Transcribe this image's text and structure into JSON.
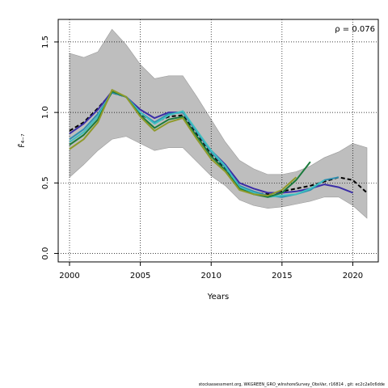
{
  "chart_data": {
    "type": "line",
    "xlabel": "Years",
    "ylabel": "F̄₄₋₇",
    "annotation": "ρ = 0.076",
    "xlim": [
      1999.2,
      2021.8
    ],
    "ylim": [
      -0.06,
      1.66
    ],
    "xticks": [
      2000,
      2005,
      2010,
      2015,
      2020
    ],
    "yticks": [
      0.0,
      0.5,
      1.0,
      1.5
    ],
    "xtick_labels": [
      "2000",
      "2005",
      "2010",
      "2015",
      "2020"
    ],
    "ytick_labels": [
      "0.0",
      "0.5",
      "1.0",
      "1.5"
    ],
    "grid": true,
    "band": {
      "color": "#bebebe",
      "x": [
        2000,
        2001,
        2002,
        2003,
        2004,
        2005,
        2006,
        2007,
        2008,
        2009,
        2010,
        2011,
        2012,
        2013,
        2014,
        2015,
        2016,
        2017,
        2018,
        2019,
        2020,
        2021
      ],
      "upper": [
        1.42,
        1.39,
        1.43,
        1.59,
        1.48,
        1.34,
        1.24,
        1.26,
        1.26,
        1.11,
        0.95,
        0.79,
        0.66,
        0.6,
        0.56,
        0.56,
        0.58,
        0.62,
        0.68,
        0.72,
        0.78,
        0.75
      ],
      "lower": [
        0.54,
        0.63,
        0.73,
        0.81,
        0.83,
        0.78,
        0.73,
        0.75,
        0.75,
        0.65,
        0.55,
        0.48,
        0.38,
        0.34,
        0.32,
        0.33,
        0.35,
        0.37,
        0.4,
        0.4,
        0.34,
        0.25
      ]
    },
    "series": [
      {
        "color": "#000000",
        "dashed": true,
        "x": [
          2000,
          2001,
          2002,
          2003,
          2004,
          2005,
          2006,
          2007,
          2008,
          2009,
          2010,
          2011,
          2012,
          2013,
          2014,
          2015,
          2016,
          2017,
          2018,
          2019,
          2020,
          2021
        ],
        "values": [
          0.87,
          0.93,
          1.03,
          1.14,
          1.11,
          0.99,
          0.93,
          0.97,
          0.98,
          0.84,
          0.7,
          0.6,
          0.48,
          0.43,
          0.42,
          0.44,
          0.46,
          0.48,
          0.51,
          0.54,
          0.52,
          0.43
        ]
      },
      {
        "color": "#3a2da6",
        "x": [
          2000,
          2001,
          2002,
          2003,
          2004,
          2005,
          2006,
          2007,
          2008,
          2009,
          2010,
          2011,
          2012,
          2013,
          2014,
          2015,
          2016,
          2017,
          2018,
          2019,
          2020
        ],
        "values": [
          0.85,
          0.92,
          1.02,
          1.15,
          1.11,
          1.02,
          0.96,
          1.0,
          1.0,
          0.86,
          0.73,
          0.63,
          0.5,
          0.46,
          0.43,
          0.43,
          0.44,
          0.46,
          0.49,
          0.47,
          0.43
        ]
      },
      {
        "color": "#2f8fb0",
        "x": [
          2000,
          2001,
          2002,
          2003,
          2004,
          2005,
          2006,
          2007,
          2008,
          2009,
          2010,
          2011,
          2012,
          2013,
          2014,
          2015,
          2016,
          2017,
          2018,
          2019
        ],
        "values": [
          0.81,
          0.88,
          0.99,
          1.14,
          1.11,
          1.0,
          0.93,
          0.99,
          1.0,
          0.86,
          0.72,
          0.61,
          0.48,
          0.44,
          0.41,
          0.4,
          0.42,
          0.45,
          0.52,
          0.54
        ]
      },
      {
        "color": "#3fc0c0",
        "x": [
          2000,
          2001,
          2002,
          2003,
          2004,
          2005,
          2006,
          2007,
          2008,
          2009,
          2010,
          2011,
          2012,
          2013,
          2014,
          2015,
          2016,
          2017,
          2018
        ],
        "values": [
          0.79,
          0.86,
          0.97,
          1.15,
          1.11,
          1.0,
          0.92,
          0.98,
          1.01,
          0.87,
          0.73,
          0.62,
          0.47,
          0.43,
          0.4,
          0.41,
          0.42,
          0.46,
          0.52
        ]
      },
      {
        "color": "#1a7a3c",
        "x": [
          2000,
          2001,
          2002,
          2003,
          2004,
          2005,
          2006,
          2007,
          2008,
          2009,
          2010,
          2011,
          2012,
          2013,
          2014,
          2015,
          2016,
          2017
        ],
        "values": [
          0.77,
          0.84,
          0.95,
          1.15,
          1.11,
          0.98,
          0.89,
          0.95,
          0.97,
          0.83,
          0.69,
          0.59,
          0.46,
          0.42,
          0.4,
          0.43,
          0.52,
          0.65
        ]
      },
      {
        "color": "#8f9a2a",
        "x": [
          2000,
          2001,
          2002,
          2003,
          2004,
          2005,
          2006,
          2007,
          2008,
          2009,
          2010,
          2011,
          2012,
          2013,
          2014,
          2015,
          2016
        ],
        "values": [
          0.74,
          0.81,
          0.93,
          1.16,
          1.11,
          0.97,
          0.87,
          0.93,
          0.96,
          0.81,
          0.67,
          0.58,
          0.45,
          0.42,
          0.41,
          0.45,
          0.54
        ]
      }
    ]
  },
  "footer": "stockassessment.org, WKGREEN_GRO_wInshoreSurvey_ObsVar, r16814 , git: ec2c2a0c6dde"
}
